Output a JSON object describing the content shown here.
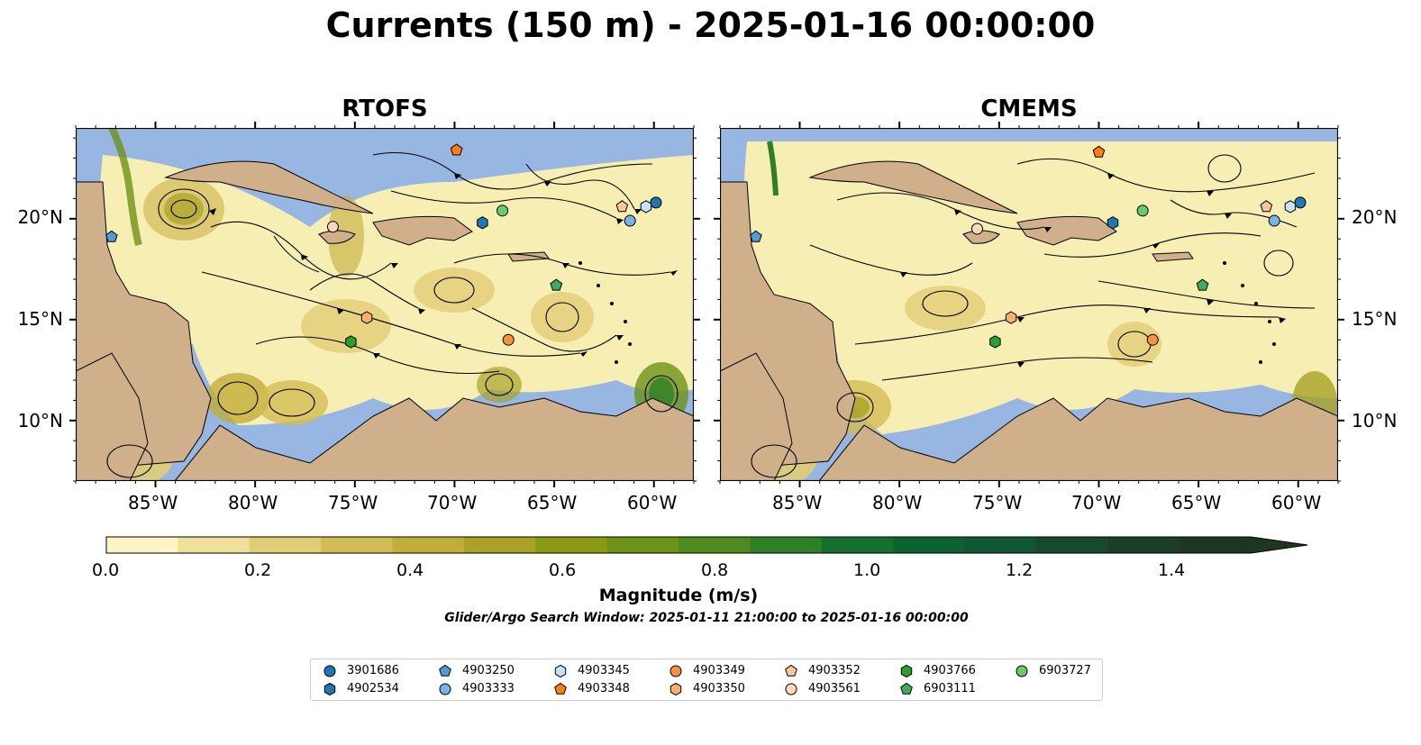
{
  "title": "Currents (150 m) - 2025-01-16 00:00:00",
  "panels": [
    {
      "title": "RTOFS"
    },
    {
      "title": "CMEMS"
    }
  ],
  "axes": {
    "lon_ticks": [
      "85°W",
      "80°W",
      "75°W",
      "70°W",
      "65°W",
      "60°W"
    ],
    "lat_ticks": [
      "20°N",
      "15°N",
      "10°N"
    ],
    "lon_range": [
      -89,
      -58
    ],
    "lat_range": [
      7,
      24.5
    ]
  },
  "colorbar": {
    "label": "Magnitude (m/s)",
    "ticks": [
      "0.0",
      "0.2",
      "0.4",
      "0.6",
      "0.8",
      "1.0",
      "1.2",
      "1.4"
    ],
    "range": [
      0,
      1.5
    ],
    "extend": "max",
    "colors": [
      "#fbf5c5",
      "#efe19a",
      "#e1cd76",
      "#d3bb55",
      "#c2ad38",
      "#a9a227",
      "#8a9a13",
      "#6d9218",
      "#4f8a1f",
      "#2f7f26",
      "#15702e",
      "#0b6331",
      "#0f5631",
      "#174a2c",
      "#1b3f26",
      "#1d3620"
    ]
  },
  "search_window": "Glider/Argo Search Window: 2025-01-11 21:00:00 to 2025-01-16 00:00:00",
  "colors": {
    "ocean": "#97b6e1",
    "land": "#cfb08b",
    "magnitude_low": "#f7eeb4"
  },
  "legend": [
    {
      "id": "3901686",
      "marker": "circle",
      "color": "#1f77b4"
    },
    {
      "id": "4902534",
      "marker": "hexagon",
      "color": "#1f77b4"
    },
    {
      "id": "4903250",
      "marker": "pentagon",
      "color": "#4f9bd4"
    },
    {
      "id": "4903333",
      "marker": "circle",
      "color": "#7cb3e6"
    },
    {
      "id": "4903345",
      "marker": "hexagon",
      "color": "#c6e2f7"
    },
    {
      "id": "4903348",
      "marker": "pentagon",
      "color": "#ff7f0e"
    },
    {
      "id": "4903349",
      "marker": "circle",
      "color": "#f5943f"
    },
    {
      "id": "4903350",
      "marker": "hexagon",
      "color": "#fdae6b"
    },
    {
      "id": "4903352",
      "marker": "pentagon",
      "color": "#fdc597"
    },
    {
      "id": "4903561",
      "marker": "circle",
      "color": "#fdd9b5"
    },
    {
      "id": "4903766",
      "marker": "hexagon",
      "color": "#2ca02c"
    },
    {
      "id": "6903111",
      "marker": "pentagon",
      "color": "#41ab5d"
    },
    {
      "id": "6903727",
      "marker": "circle",
      "color": "#6bcb6b"
    }
  ],
  "floats_rtofs": [
    {
      "id": "3901686",
      "lon": -59.9,
      "lat": 20.8
    },
    {
      "id": "4903345",
      "lon": -60.4,
      "lat": 20.6
    },
    {
      "id": "4903352",
      "lon": -61.6,
      "lat": 20.6
    },
    {
      "id": "4903333",
      "lon": -61.2,
      "lat": 19.9
    },
    {
      "id": "4902534",
      "lon": -68.6,
      "lat": 19.8
    },
    {
      "id": "6903727",
      "lon": -67.6,
      "lat": 20.4
    },
    {
      "id": "4903348",
      "lon": -69.9,
      "lat": 23.4
    },
    {
      "id": "4903561",
      "lon": -76.1,
      "lat": 19.6
    },
    {
      "id": "4903250",
      "lon": -87.2,
      "lat": 19.1
    },
    {
      "id": "6903111",
      "lon": -64.9,
      "lat": 16.7
    },
    {
      "id": "4903350",
      "lon": -74.4,
      "lat": 15.1
    },
    {
      "id": "4903766",
      "lon": -75.2,
      "lat": 13.9
    },
    {
      "id": "4903349",
      "lon": -67.3,
      "lat": 14.0
    }
  ],
  "floats_cmems": [
    {
      "id": "3901686",
      "lon": -59.9,
      "lat": 20.8
    },
    {
      "id": "4903345",
      "lon": -60.4,
      "lat": 20.6
    },
    {
      "id": "4903352",
      "lon": -61.6,
      "lat": 20.6
    },
    {
      "id": "4903333",
      "lon": -61.2,
      "lat": 19.9
    },
    {
      "id": "4902534",
      "lon": -69.3,
      "lat": 19.8
    },
    {
      "id": "6903727",
      "lon": -67.8,
      "lat": 20.4
    },
    {
      "id": "4903348",
      "lon": -70.0,
      "lat": 23.3
    },
    {
      "id": "4903561",
      "lon": -76.1,
      "lat": 19.5
    },
    {
      "id": "4903250",
      "lon": -87.2,
      "lat": 19.1
    },
    {
      "id": "6903111",
      "lon": -64.8,
      "lat": 16.7
    },
    {
      "id": "4903350",
      "lon": -74.4,
      "lat": 15.1
    },
    {
      "id": "4903766",
      "lon": -75.2,
      "lat": 13.9
    },
    {
      "id": "4903349",
      "lon": -67.3,
      "lat": 14.0
    }
  ]
}
